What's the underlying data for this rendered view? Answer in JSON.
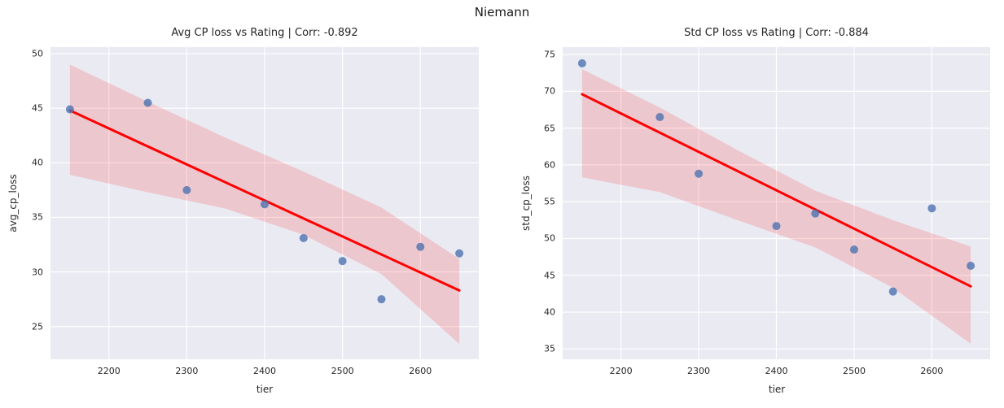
{
  "figure": {
    "suptitle": "Niemann"
  },
  "style": {
    "background": "#ffffff",
    "axes_background": "#eaeaf2",
    "grid_color": "#ffffff",
    "text_color": "#262626",
    "point_color": "#4c72b0",
    "point_opacity": 0.8,
    "line_color": "#ff0000",
    "band_color": "#ff0000",
    "band_opacity": 0.15
  },
  "chart_data": [
    {
      "type": "scatter",
      "title": "Avg CP loss vs Rating | Corr: -0.892",
      "corr": -0.892,
      "xlabel": "tier",
      "ylabel": "avg_cp_loss",
      "x": [
        2150,
        2250,
        2300,
        2400,
        2450,
        2500,
        2550,
        2600,
        2650
      ],
      "y": [
        44.9,
        45.5,
        37.5,
        36.2,
        33.1,
        31.0,
        27.5,
        32.3,
        31.7
      ],
      "regression_line": {
        "x1": 2150,
        "y1": 44.8,
        "x2": 2650,
        "y2": 28.3
      },
      "ci_band": {
        "x": [
          2150,
          2250,
          2350,
          2450,
          2550,
          2650
        ],
        "upper": [
          49.0,
          45.6,
          42.3,
          39.2,
          35.9,
          31.2
        ],
        "lower": [
          38.9,
          37.3,
          35.8,
          33.4,
          29.8,
          23.4
        ]
      },
      "xlim": [
        2125,
        2675
      ],
      "ylim": [
        22.0,
        50.6
      ],
      "xticks": [
        2200,
        2300,
        2400,
        2500,
        2600
      ],
      "yticks": [
        25,
        30,
        35,
        40,
        45,
        50
      ],
      "grid": true,
      "legend": null
    },
    {
      "type": "scatter",
      "title": "Std CP loss vs Rating | Corr: -0.884",
      "corr": -0.884,
      "xlabel": "tier",
      "ylabel": "std_cp_loss",
      "x": [
        2150,
        2250,
        2300,
        2400,
        2450,
        2500,
        2550,
        2600,
        2650
      ],
      "y": [
        73.8,
        66.5,
        58.8,
        51.7,
        53.4,
        48.5,
        42.8,
        54.1,
        46.3
      ],
      "regression_line": {
        "x1": 2150,
        "y1": 69.6,
        "x2": 2650,
        "y2": 43.5
      },
      "ci_band": {
        "x": [
          2150,
          2250,
          2350,
          2450,
          2550,
          2650
        ],
        "upper": [
          73.0,
          67.8,
          62.0,
          56.5,
          52.5,
          48.9
        ],
        "lower": [
          58.3,
          56.3,
          52.5,
          48.8,
          43.3,
          35.7
        ]
      },
      "xlim": [
        2125,
        2675
      ],
      "ylim": [
        33.6,
        76.0
      ],
      "xticks": [
        2200,
        2300,
        2400,
        2500,
        2600
      ],
      "yticks": [
        35,
        40,
        45,
        50,
        55,
        60,
        65,
        70,
        75
      ],
      "grid": true,
      "legend": null
    }
  ]
}
